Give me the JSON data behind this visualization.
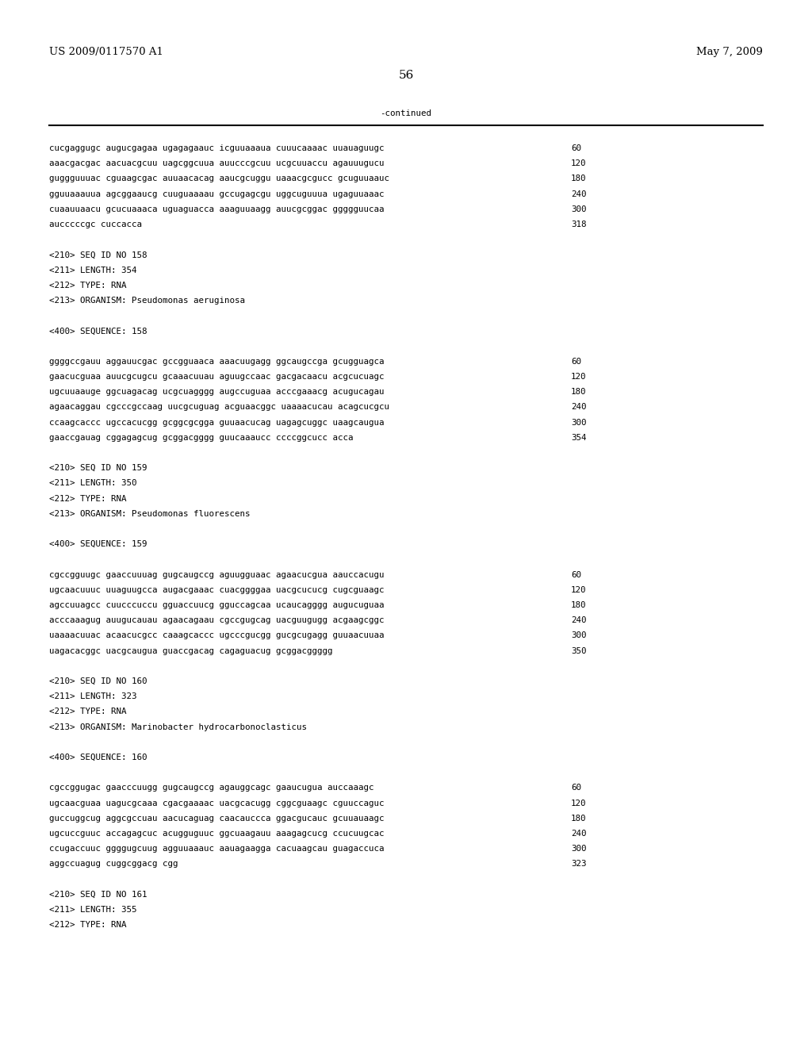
{
  "patent_number": "US 2009/0117570 A1",
  "date": "May 7, 2009",
  "page_number": "56",
  "continued_label": "-continued",
  "background_color": "#ffffff",
  "text_color": "#000000",
  "body": [
    {
      "type": "seq",
      "text": "cucgaggugc augucgagaa ugagagaauc icguuaaaua cuuucaaaac uuauaguugc",
      "num": "60"
    },
    {
      "type": "seq",
      "text": "aaacgacgac aacuacgcuu uagcggcuua auucccgcuu ucgcuuaccu agauuugucu",
      "num": "120"
    },
    {
      "type": "seq",
      "text": "guggguuuac cguaagcgac auuaacacag aaucgcuggu uaaacgcgucc gcuguuaauc",
      "num": "180"
    },
    {
      "type": "seq",
      "text": "gguuaaauua agcggaaucg cuuguaaaau gccugagcgu uggcuguuua ugaguuaaac",
      "num": "240"
    },
    {
      "type": "seq",
      "text": "cuaauuaacu gcucuaaaca uguaguacca aaaguuaagg auucgcggac ggggguucaa",
      "num": "300"
    },
    {
      "type": "seq",
      "text": "aucccccgc cuccacca",
      "num": "318"
    },
    {
      "type": "blank"
    },
    {
      "type": "meta",
      "text": "<210> SEQ ID NO 158"
    },
    {
      "type": "meta",
      "text": "<211> LENGTH: 354"
    },
    {
      "type": "meta",
      "text": "<212> TYPE: RNA"
    },
    {
      "type": "meta",
      "text": "<213> ORGANISM: Pseudomonas aeruginosa"
    },
    {
      "type": "blank"
    },
    {
      "type": "meta",
      "text": "<400> SEQUENCE: 158"
    },
    {
      "type": "blank"
    },
    {
      "type": "seq",
      "text": "ggggccgauu aggauucgac gccgguaaca aaacuugagg ggcaugccga gcugguagca",
      "num": "60"
    },
    {
      "type": "seq",
      "text": "gaacucguaa auucgcugcu gcaaacuuau aguugccaac gacgacaacu acgcucuagc",
      "num": "120"
    },
    {
      "type": "seq",
      "text": "ugcuuaauge ggcuagacag ucgcuagggg augccuguaa acccgaaacg acugucagau",
      "num": "180"
    },
    {
      "type": "seq",
      "text": "agaacaggau cgcccgccaag uucgcuguag acguaacggc uaaaacucau acagcucgcu",
      "num": "240"
    },
    {
      "type": "seq",
      "text": "ccaagcaccc ugccacucgg gcggcgcgga guuaacucag uagagcuggc uaagcaugua",
      "num": "300"
    },
    {
      "type": "seq",
      "text": "gaaccgauag cggagagcug gcggacgggg guucaaaucc ccccggcucc acca",
      "num": "354"
    },
    {
      "type": "blank"
    },
    {
      "type": "meta",
      "text": "<210> SEQ ID NO 159"
    },
    {
      "type": "meta",
      "text": "<211> LENGTH: 350"
    },
    {
      "type": "meta",
      "text": "<212> TYPE: RNA"
    },
    {
      "type": "meta",
      "text": "<213> ORGANISM: Pseudomonas fluorescens"
    },
    {
      "type": "blank"
    },
    {
      "type": "meta",
      "text": "<400> SEQUENCE: 159"
    },
    {
      "type": "blank"
    },
    {
      "type": "seq",
      "text": "cgccgguugc gaaccuuuag gugcaugccg aguugguaac agaacucgua aauccacugu",
      "num": "60"
    },
    {
      "type": "seq",
      "text": "ugcaacuuuc uuaguugcca augacgaaac cuacggggaa uacgcucucg cugcguaagc",
      "num": "120"
    },
    {
      "type": "seq",
      "text": "agccuuagcc cuucccuccu gguaccuucg gguccagcaa ucaucagggg augucuguaa",
      "num": "180"
    },
    {
      "type": "seq",
      "text": "acccaaagug auugucauau agaacagaau cgccgugcag uacguugugg acgaagcggc",
      "num": "240"
    },
    {
      "type": "seq",
      "text": "uaaaacuuac acaacucgcc caaagcaccc ugcccgucgg gucgcugagg guuaacuuaa",
      "num": "300"
    },
    {
      "type": "seq",
      "text": "uagacacggc uacgcaugua guaccgacag cagaguacug gcggacggggg",
      "num": "350"
    },
    {
      "type": "blank"
    },
    {
      "type": "meta",
      "text": "<210> SEQ ID NO 160"
    },
    {
      "type": "meta",
      "text": "<211> LENGTH: 323"
    },
    {
      "type": "meta",
      "text": "<212> TYPE: RNA"
    },
    {
      "type": "meta",
      "text": "<213> ORGANISM: Marinobacter hydrocarbonoclasticus"
    },
    {
      "type": "blank"
    },
    {
      "type": "meta",
      "text": "<400> SEQUENCE: 160"
    },
    {
      "type": "blank"
    },
    {
      "type": "seq",
      "text": "cgccggugac gaacccuugg gugcaugccg agauggcagc gaaucugua auccaaagc",
      "num": "60"
    },
    {
      "type": "seq",
      "text": "ugcaacguaa uagucgcaaa cgacgaaaac uacgcacugg cggcguaagc cguuccaguc",
      "num": "120"
    },
    {
      "type": "seq",
      "text": "guccuggcug aggcgccuau aacucaguag caacauccca ggacgucauc gcuuauaagc",
      "num": "180"
    },
    {
      "type": "seq",
      "text": "ugcuccguuc accagagcuc acugguguuc ggcuaagauu aaagagcucg ccucuugcac",
      "num": "240"
    },
    {
      "type": "seq",
      "text": "ccugaccuuc ggggugcuug agguuaaauc aauagaagga cacuaagcau guagaccuca",
      "num": "300"
    },
    {
      "type": "seq",
      "text": "aggccuagug cuggcggacg cgg",
      "num": "323"
    },
    {
      "type": "blank"
    },
    {
      "type": "meta",
      "text": "<210> SEQ ID NO 161"
    },
    {
      "type": "meta",
      "text": "<211> LENGTH: 355"
    },
    {
      "type": "meta",
      "text": "<212> TYPE: RNA"
    }
  ]
}
